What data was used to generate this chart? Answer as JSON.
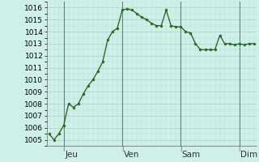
{
  "background_color": "#cff0e8",
  "line_color": "#2d6a2d",
  "marker_color": "#2d6a2d",
  "grid_color_major": "#aacfc8",
  "grid_color_minor": "#bcddd8",
  "ylim": [
    1004.5,
    1016.5
  ],
  "yticks": [
    1005,
    1006,
    1007,
    1008,
    1009,
    1010,
    1011,
    1012,
    1013,
    1014,
    1015,
    1016
  ],
  "day_labels": [
    "Jeu",
    "Ven",
    "Sam",
    "Dim"
  ],
  "day_line_x": [
    12,
    60,
    108,
    156
  ],
  "x_values": [
    0,
    4,
    8,
    12,
    16,
    20,
    24,
    28,
    32,
    36,
    40,
    44,
    48,
    52,
    56,
    60,
    64,
    68,
    72,
    76,
    80,
    84,
    88,
    92,
    96,
    100,
    104,
    108,
    112,
    116,
    120,
    124,
    128,
    132,
    136,
    140,
    144,
    148,
    152,
    156,
    160,
    164,
    168
  ],
  "y_values": [
    1005.5,
    1005.0,
    1005.5,
    1006.2,
    1008.0,
    1007.7,
    1008.0,
    1008.8,
    1009.5,
    1010.0,
    1010.7,
    1011.5,
    1013.3,
    1014.0,
    1014.3,
    1015.8,
    1015.9,
    1015.8,
    1015.5,
    1015.2,
    1015.0,
    1014.7,
    1014.5,
    1014.5,
    1015.8,
    1014.5,
    1014.4,
    1014.4,
    1014.0,
    1013.9,
    1013.0,
    1012.5,
    1012.5,
    1012.5,
    1012.5,
    1013.7,
    1013.0,
    1013.0,
    1012.9,
    1013.0,
    1012.9,
    1013.0,
    1013.0
  ],
  "tick_fontsize": 6.5,
  "label_fontsize": 7.5,
  "linewidth": 1.0,
  "markersize": 2.2,
  "figsize": [
    3.2,
    2.0
  ],
  "dpi": 100
}
